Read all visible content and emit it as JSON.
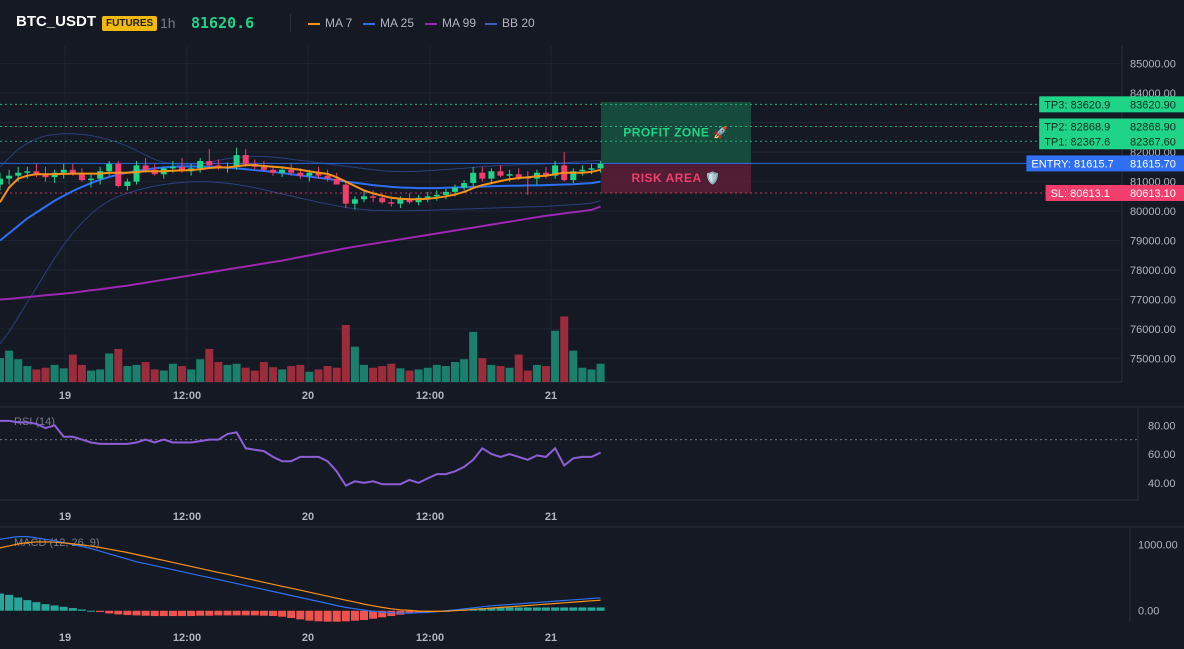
{
  "header": {
    "symbol": "BTC_USDT",
    "badge": "FUTURES",
    "timeframe": "1h",
    "last_price": "81620.6",
    "legend": [
      {
        "label": "MA 7",
        "color": "#f7931a"
      },
      {
        "label": "MA 25",
        "color": "#2f6ff3"
      },
      {
        "label": "MA 99",
        "color": "#9c27b0"
      },
      {
        "label": "BB 20",
        "color": "#3b5cb8"
      }
    ]
  },
  "colors": {
    "up": "#1fd487",
    "down": "#f23d6d",
    "vol_up": "#1a7f6b",
    "vol_down": "#9b2c3c",
    "rsi": "#8c5fd6",
    "macd_line": "#2f6ff3",
    "signal_line": "#f7931a"
  },
  "chart_data": [
    {
      "id": "price",
      "type": "candlestick",
      "ylim": [
        74200,
        85600
      ],
      "y_ticks": [
        "85000.00",
        "84000.00",
        "83000.00",
        "82000.00",
        "81000.00",
        "80000.00",
        "79000.00",
        "78000.00",
        "77000.00",
        "76000.00",
        "75000.00"
      ],
      "x_ticks": [
        "19",
        "12:00",
        "20",
        "12:00",
        "21"
      ],
      "candles": [
        [
          80900,
          81300,
          80700,
          81100
        ],
        [
          81100,
          81400,
          80900,
          81200
        ],
        [
          81200,
          81500,
          81000,
          81300
        ],
        [
          81300,
          81500,
          81100,
          81350
        ],
        [
          81350,
          81600,
          81150,
          81250
        ],
        [
          81250,
          81500,
          81000,
          81150
        ],
        [
          81150,
          81400,
          80950,
          81300
        ],
        [
          81300,
          81600,
          81100,
          81400
        ],
        [
          81400,
          81600,
          81200,
          81250
        ],
        [
          81250,
          81450,
          81000,
          81050
        ],
        [
          81050,
          81300,
          80800,
          81100
        ],
        [
          81100,
          81500,
          80900,
          81350
        ],
        [
          81350,
          81700,
          81200,
          81600
        ],
        [
          81600,
          81700,
          80800,
          80850
        ],
        [
          80850,
          81100,
          80700,
          81000
        ],
        [
          81000,
          81700,
          80900,
          81550
        ],
        [
          81550,
          81800,
          81300,
          81400
        ],
        [
          81400,
          81600,
          81200,
          81250
        ],
        [
          81250,
          81500,
          81100,
          81450
        ],
        [
          81450,
          81700,
          81300,
          81500
        ],
        [
          81500,
          81800,
          81300,
          81350
        ],
        [
          81350,
          81600,
          81200,
          81450
        ],
        [
          81450,
          81800,
          81300,
          81700
        ],
        [
          81700,
          82100,
          81500,
          81550
        ],
        [
          81550,
          81750,
          81400,
          81450
        ],
        [
          81450,
          81650,
          81300,
          81500
        ],
        [
          81500,
          82150,
          81400,
          81900
        ],
        [
          81900,
          82100,
          81500,
          81600
        ],
        [
          81600,
          81750,
          81400,
          81500
        ],
        [
          81500,
          81700,
          81350,
          81400
        ],
        [
          81400,
          81550,
          81200,
          81300
        ],
        [
          81300,
          81500,
          81150,
          81400
        ],
        [
          81400,
          81600,
          81200,
          81300
        ],
        [
          81300,
          81450,
          81100,
          81200
        ],
        [
          81200,
          81400,
          81000,
          81300
        ],
        [
          81300,
          81500,
          81100,
          81200
        ],
        [
          81200,
          81400,
          81000,
          81100
        ],
        [
          81100,
          81300,
          80900,
          80900
        ],
        [
          80900,
          81000,
          80100,
          80250
        ],
        [
          80250,
          80500,
          80050,
          80400
        ],
        [
          80400,
          80700,
          80300,
          80500
        ],
        [
          80500,
          80700,
          80300,
          80450
        ],
        [
          80450,
          80600,
          80250,
          80300
        ],
        [
          80300,
          80500,
          80150,
          80250
        ],
        [
          80250,
          80500,
          80100,
          80400
        ],
        [
          80400,
          80600,
          80250,
          80300
        ],
        [
          80300,
          80550,
          80200,
          80450
        ],
        [
          80450,
          80650,
          80300,
          80500
        ],
        [
          80500,
          80700,
          80350,
          80550
        ],
        [
          80550,
          80750,
          80400,
          80650
        ],
        [
          80650,
          80900,
          80500,
          80800
        ],
        [
          80800,
          81050,
          80700,
          80950
        ],
        [
          80950,
          81500,
          80850,
          81300
        ],
        [
          81300,
          81500,
          81000,
          81100
        ],
        [
          81100,
          81450,
          80950,
          81350
        ],
        [
          81350,
          81550,
          81150,
          81200
        ],
        [
          81200,
          81400,
          81000,
          81250
        ],
        [
          81250,
          81450,
          81050,
          81150
        ],
        [
          81150,
          81350,
          80550,
          81100
        ],
        [
          81100,
          81400,
          80900,
          81300
        ],
        [
          81300,
          81500,
          81100,
          81200
        ],
        [
          81200,
          81700,
          81100,
          81550
        ],
        [
          81550,
          82000,
          81000,
          81050
        ],
        [
          81050,
          81450,
          80950,
          81350
        ],
        [
          81350,
          81550,
          81200,
          81400
        ],
        [
          81400,
          81600,
          81250,
          81450
        ],
        [
          81450,
          81700,
          81300,
          81600
        ]
      ],
      "volume": [
        0.42,
        0.55,
        0.4,
        0.28,
        0.22,
        0.25,
        0.3,
        0.24,
        0.48,
        0.3,
        0.2,
        0.22,
        0.5,
        0.58,
        0.28,
        0.3,
        0.35,
        0.22,
        0.2,
        0.32,
        0.28,
        0.22,
        0.4,
        0.58,
        0.35,
        0.3,
        0.32,
        0.25,
        0.2,
        0.35,
        0.26,
        0.22,
        0.28,
        0.3,
        0.18,
        0.22,
        0.28,
        0.25,
        1.0,
        0.62,
        0.3,
        0.25,
        0.28,
        0.32,
        0.24,
        0.2,
        0.22,
        0.25,
        0.3,
        0.28,
        0.35,
        0.4,
        0.88,
        0.42,
        0.3,
        0.28,
        0.25,
        0.48,
        0.2,
        0.3,
        0.28,
        0.9,
        1.15,
        0.55,
        0.25,
        0.22,
        0.32
      ],
      "ma7": [
        80300,
        80800,
        81100,
        81200,
        81250,
        81250,
        81250,
        81260,
        81270,
        81270,
        81270,
        81270,
        81300,
        81300,
        81300,
        81320,
        81350,
        81350,
        81350,
        81370,
        81380,
        81390,
        81420,
        81460,
        81480,
        81480,
        81520,
        81560,
        81560,
        81530,
        81500,
        81480,
        81440,
        81400,
        81350,
        81300,
        81260,
        81150,
        81000,
        80850,
        80700,
        80600,
        80520,
        80450,
        80420,
        80400,
        80400,
        80420,
        80450,
        80500,
        80560,
        80650,
        80780,
        80880,
        80950,
        81020,
        81080,
        81120,
        81150,
        81180,
        81200,
        81250,
        81300,
        81300,
        81300,
        81330,
        81400
      ],
      "ma25": [
        79000,
        79250,
        79500,
        79750,
        79950,
        80150,
        80350,
        80520,
        80680,
        80820,
        80950,
        81060,
        81160,
        81240,
        81300,
        81360,
        81410,
        81450,
        81480,
        81500,
        81510,
        81510,
        81510,
        81500,
        81490,
        81470,
        81450,
        81420,
        81390,
        81360,
        81330,
        81290,
        81250,
        81210,
        81170,
        81130,
        81090,
        81050,
        81000,
        80960,
        80920,
        80880,
        80850,
        80820,
        80800,
        80790,
        80780,
        80780,
        80780,
        80790,
        80800,
        80810,
        80820,
        80830,
        80840,
        80850,
        80860,
        80860,
        80870,
        80870,
        80880,
        80890,
        80900,
        80910,
        80930,
        80950,
        81000
      ],
      "ma99": [
        77000,
        77020,
        77050,
        77080,
        77110,
        77140,
        77170,
        77200,
        77230,
        77270,
        77310,
        77350,
        77390,
        77430,
        77470,
        77520,
        77570,
        77620,
        77670,
        77720,
        77770,
        77820,
        77870,
        77920,
        77970,
        78020,
        78070,
        78120,
        78170,
        78220,
        78270,
        78320,
        78380,
        78440,
        78500,
        78560,
        78620,
        78680,
        78740,
        78790,
        78840,
        78890,
        78940,
        78990,
        79040,
        79090,
        79140,
        79190,
        79240,
        79290,
        79340,
        79390,
        79440,
        79490,
        79540,
        79590,
        79640,
        79690,
        79740,
        79790,
        79840,
        79880,
        79920,
        79960,
        80000,
        80040,
        80150
      ],
      "bb_upper": [
        81500,
        81800,
        82100,
        82300,
        82450,
        82550,
        82600,
        82620,
        82620,
        82600,
        82560,
        82500,
        82420,
        82320,
        82200,
        82050,
        81900,
        81750,
        81650,
        81600,
        81580,
        81580,
        81600,
        81650,
        81720,
        81780,
        81820,
        81850,
        81860,
        81850,
        81830,
        81800,
        81760,
        81720,
        81680,
        81640,
        81600,
        81560,
        81520,
        81480,
        81440,
        81400,
        81370,
        81350,
        81340,
        81340,
        81350,
        81370,
        81390,
        81410,
        81430,
        81450,
        81480,
        81510,
        81530,
        81550,
        81560,
        81570,
        81580,
        81590,
        81600,
        81620,
        81640,
        81660,
        81680,
        81700,
        81720
      ],
      "bb_lower": [
        75500,
        75900,
        76400,
        76900,
        77400,
        77900,
        78400,
        78850,
        79250,
        79600,
        79900,
        80150,
        80350,
        80500,
        80600,
        80700,
        80780,
        80850,
        80900,
        80940,
        80970,
        80990,
        81000,
        80990,
        80970,
        80940,
        80900,
        80850,
        80790,
        80720,
        80650,
        80580,
        80510,
        80440,
        80370,
        80300,
        80240,
        80180,
        80120,
        80080,
        80050,
        80030,
        80020,
        80010,
        80010,
        80010,
        80020,
        80030,
        80040,
        80050,
        80060,
        80070,
        80080,
        80090,
        80100,
        80110,
        80120,
        80130,
        80140,
        80150,
        80160,
        80180,
        80200,
        80220,
        80240,
        80270,
        80350
      ],
      "levels": [
        {
          "name": "tp3",
          "left_label": "TP3: 83620.9",
          "right_label": "83620.90",
          "value": 83620.9,
          "color": "#1fd487"
        },
        {
          "name": "tp2",
          "left_label": "TP2: 82868.9",
          "right_label": "82868.90",
          "value": 82868.9,
          "color": "#1fd487"
        },
        {
          "name": "tp1",
          "left_label": "TP1: 82367.6",
          "right_label": "82367.60",
          "value": 82367.6,
          "color": "#1fd487"
        },
        {
          "name": "entry",
          "left_label": "ENTRY: 81615.7",
          "right_label": "81615.70",
          "value": 81615.7,
          "color": "#2f6ff3"
        },
        {
          "name": "sl",
          "left_label": "SL: 80613.1",
          "right_label": "80613.10",
          "value": 80613.1,
          "color": "#f23d6d"
        }
      ],
      "profit_zone_label": "PROFIT ZONE 🚀",
      "risk_area_label": "RISK AREA 🛡️"
    },
    {
      "id": "rsi",
      "type": "line",
      "title": "RSI (14)",
      "ylim": [
        28,
        92
      ],
      "y_ticks": [
        "80.00",
        "60.00",
        "40.00"
      ],
      "overbought": 70,
      "values": [
        83,
        83,
        82,
        82,
        81,
        78,
        80,
        72,
        72,
        70,
        68,
        67,
        67,
        67,
        67,
        68,
        70,
        68,
        70,
        68,
        68,
        68,
        69,
        70,
        70,
        74,
        75,
        64,
        63,
        62,
        58,
        55,
        55,
        58,
        58,
        58,
        55,
        48,
        38,
        41,
        40,
        41,
        39,
        39,
        39,
        42,
        40,
        43,
        46,
        46,
        48,
        51,
        56,
        64,
        60,
        58,
        60,
        58,
        56,
        59,
        58,
        64,
        52,
        57,
        58,
        58,
        61
      ],
      "x_ticks": [
        "19",
        "12:00",
        "20",
        "12:00",
        "21"
      ]
    },
    {
      "id": "macd",
      "type": "bar+line",
      "title": "MACD (12, 26, 9)",
      "ylim": [
        -170,
        1250
      ],
      "y_ticks": [
        "1000.00",
        "0.00"
      ],
      "macd": [
        1080,
        1100,
        1120,
        1120,
        1100,
        1080,
        1060,
        1030,
        1000,
        970,
        940,
        900,
        860,
        820,
        780,
        740,
        710,
        680,
        650,
        620,
        590,
        560,
        530,
        500,
        470,
        440,
        410,
        380,
        350,
        320,
        290,
        260,
        230,
        200,
        170,
        140,
        110,
        80,
        50,
        30,
        10,
        -10,
        -20,
        -30,
        -35,
        -35,
        -30,
        -25,
        -15,
        0,
        15,
        30,
        45,
        60,
        75,
        85,
        95,
        105,
        115,
        125,
        135,
        145,
        155,
        165,
        175,
        185,
        195
      ],
      "signal": [
        950,
        980,
        1010,
        1030,
        1040,
        1040,
        1035,
        1025,
        1010,
        995,
        975,
        955,
        930,
        905,
        880,
        850,
        820,
        790,
        760,
        730,
        700,
        670,
        640,
        610,
        580,
        550,
        520,
        490,
        460,
        430,
        400,
        370,
        340,
        310,
        280,
        250,
        220,
        190,
        160,
        130,
        100,
        75,
        50,
        30,
        15,
        5,
        -5,
        -10,
        -10,
        -5,
        0,
        10,
        20,
        30,
        40,
        50,
        60,
        70,
        80,
        90,
        100,
        110,
        120,
        130,
        140,
        150,
        160
      ],
      "hist": [
        260,
        240,
        200,
        160,
        130,
        100,
        80,
        60,
        40,
        20,
        0,
        -20,
        -40,
        -55,
        -65,
        -70,
        -75,
        -80,
        -80,
        -80,
        -80,
        -80,
        -75,
        -75,
        -70,
        -70,
        -70,
        -70,
        -70,
        -75,
        -80,
        -90,
        -110,
        -130,
        -150,
        -160,
        -165,
        -165,
        -160,
        -150,
        -140,
        -120,
        -100,
        -80,
        -60,
        -40,
        -30,
        -20,
        -10,
        0,
        10,
        20,
        30,
        40,
        45,
        50,
        50,
        50,
        50,
        50,
        50,
        50,
        50,
        50,
        50,
        50,
        50
      ],
      "x_ticks": [
        "19",
        "12:00",
        "20",
        "12:00",
        "21"
      ]
    }
  ]
}
